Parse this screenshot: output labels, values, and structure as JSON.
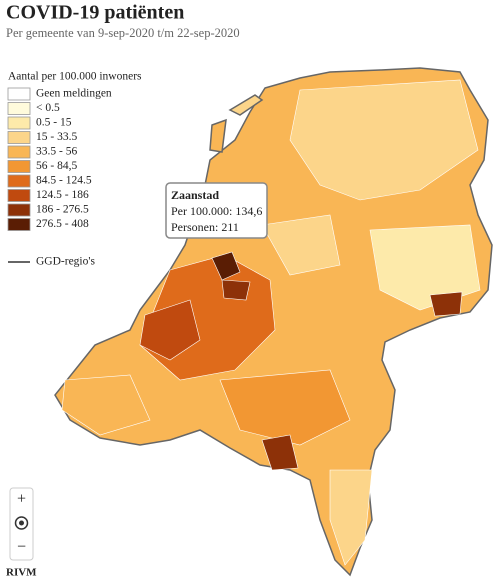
{
  "header": {
    "title": "COVID-19 patiënten",
    "subtitle": "Per gemeente van 9-sep-2020 t/m 22-sep-2020"
  },
  "legend": {
    "title": "Aantal per 100.000 inwoners",
    "items": [
      {
        "label": "Geen meldingen",
        "color": "#ffffff"
      },
      {
        "label": "< 0.5",
        "color": "#fffbdc"
      },
      {
        "label": "0.5 - 15",
        "color": "#fdeaaa"
      },
      {
        "label": "15 - 33.5",
        "color": "#fcd58a"
      },
      {
        "label": "33.5 - 56",
        "color": "#f9b655"
      },
      {
        "label": "56 - 84,5",
        "color": "#f29733"
      },
      {
        "label": "84.5 - 124.5",
        "color": "#df6b1b"
      },
      {
        "label": "124.5 - 186",
        "color": "#c04a0f"
      },
      {
        "label": "186 - 276.5",
        "color": "#8d3108"
      },
      {
        "label": "276.5 - 408",
        "color": "#5a1d04"
      }
    ],
    "region_line": "GGD-regio's"
  },
  "tooltip": {
    "name": "Zaanstad",
    "lines": [
      "Per 100.000: 134,6",
      "Personen: 211"
    ]
  },
  "controls": {
    "zoom_in": "+",
    "zoom_out": "−"
  },
  "credit": "RIVM"
}
